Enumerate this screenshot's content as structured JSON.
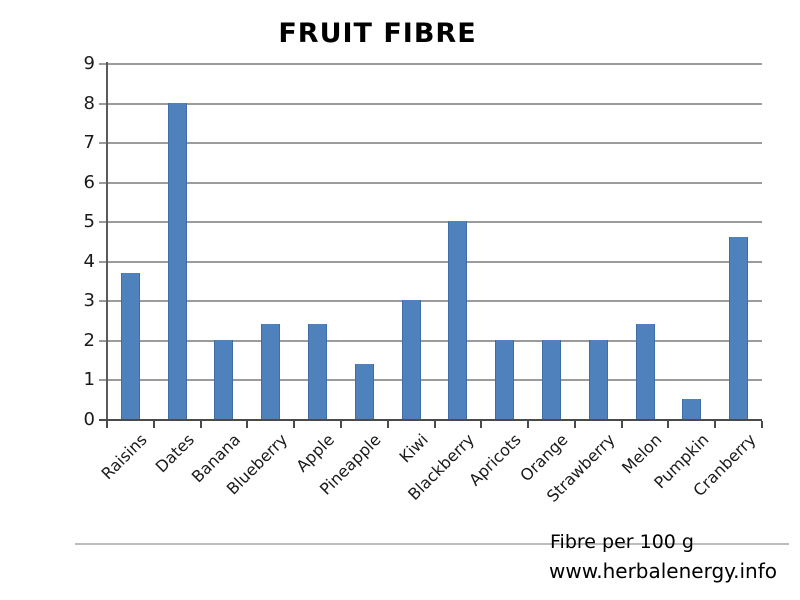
{
  "chart_data": {
    "type": "bar",
    "title": "FRUIT FIBRE",
    "categories": [
      "Raisins",
      "Dates",
      "Banana",
      "Blueberry",
      "Apple",
      "Pineapple",
      "Kiwi",
      "Blackberry",
      "Apricots",
      "Orange",
      "Strawberry",
      "Melon",
      "Pumpkin",
      "Cranberry"
    ],
    "values": [
      3.7,
      8,
      2,
      2.4,
      2.4,
      1.4,
      3,
      5,
      2,
      2,
      2,
      2.4,
      0.5,
      4.6
    ],
    "xlabel": "",
    "ylabel": "",
    "ylim": [
      0,
      9
    ],
    "ytick_step": 1,
    "grid": true,
    "legend": "none",
    "bar_color": "#4f81bd",
    "bar_border_color": "#3e6da8",
    "gridline_color": "#9b9b9b",
    "axis_color": "#5a5a5a",
    "x_axis_color": "#4a4a4a"
  },
  "captions": {
    "line1": "Fibre per 100 g",
    "line2": "www.herbalenergy.info"
  }
}
